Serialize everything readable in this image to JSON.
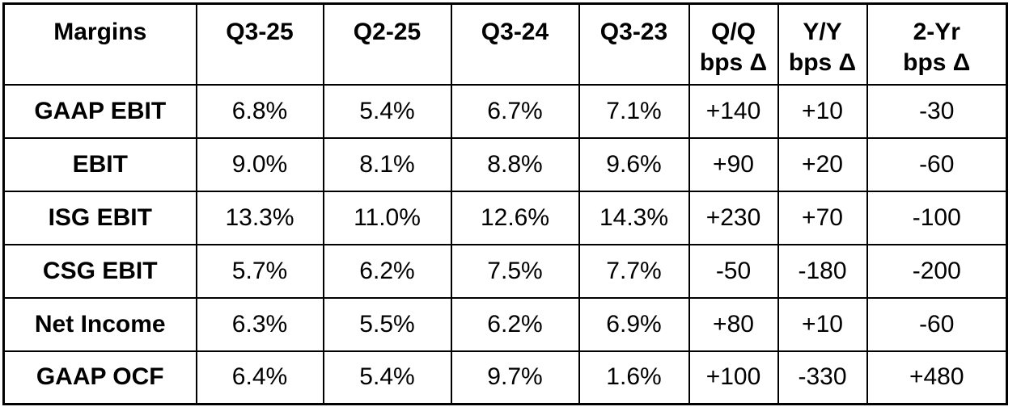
{
  "colors": {
    "border": "#000000",
    "background": "#ffffff",
    "text": "#000000"
  },
  "chart_data": {
    "type": "table",
    "title": "Margins",
    "columns": [
      "Margins",
      "Q3-25",
      "Q2-25",
      "Q3-24",
      "Q3-23",
      "Q/Q\nbps Δ",
      "Y/Y\nbps Δ",
      "2-Yr\nbps Δ"
    ],
    "rows": [
      [
        "GAAP EBIT",
        "6.8%",
        "5.4%",
        "6.7%",
        "7.1%",
        "+140",
        "+10",
        "-30"
      ],
      [
        "EBIT",
        "9.0%",
        "8.1%",
        "8.8%",
        "9.6%",
        "+90",
        "+20",
        "-60"
      ],
      [
        "ISG EBIT",
        "13.3%",
        "11.0%",
        "12.6%",
        "14.3%",
        "+230",
        "+70",
        "-100"
      ],
      [
        "CSG EBIT",
        "5.7%",
        "6.2%",
        "7.5%",
        "7.7%",
        "-50",
        "-180",
        "-200"
      ],
      [
        "Net Income",
        "6.3%",
        "5.5%",
        "6.2%",
        "6.9%",
        "+80",
        "+10",
        "-60"
      ],
      [
        "GAAP OCF",
        "6.4%",
        "5.4%",
        "9.7%",
        "1.6%",
        "+100",
        "-330",
        "+480"
      ]
    ]
  }
}
